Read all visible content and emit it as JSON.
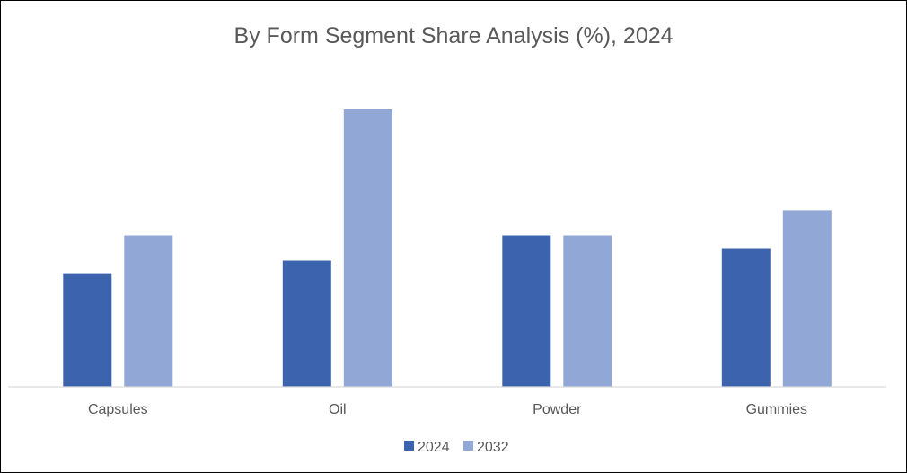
{
  "chart_data": {
    "type": "bar",
    "title": "By Form Segment Share Analysis (%), 2024",
    "xlabel": "",
    "ylabel": "",
    "categories": [
      "Capsules",
      "Oil",
      "Powder",
      "Gummies"
    ],
    "series": [
      {
        "name": "2024",
        "values": [
          9.0,
          10.0,
          12.0,
          11.0
        ],
        "color": "#3c64ae"
      },
      {
        "name": "2032",
        "values": [
          12.0,
          22.0,
          12.0,
          14.0
        ],
        "color": "#91a7d6"
      }
    ],
    "ylim": [
      0,
      22
    ],
    "grid": false,
    "legend": "bottom-center"
  },
  "colors": {
    "axis": "#d9d9d9",
    "text": "#595959",
    "border": "#000000"
  }
}
